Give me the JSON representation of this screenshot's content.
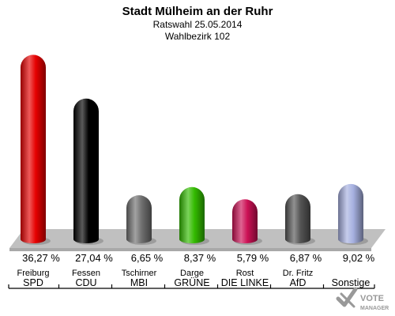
{
  "header": {
    "title": "Stadt Mülheim an der Ruhr",
    "subtitle": "Ratswahl 25.05.2014",
    "district": "Wahlbezirk 102"
  },
  "logo": {
    "text_top": "VOTE",
    "text_bottom": "MANAGER"
  },
  "chart_data": {
    "type": "bar",
    "title": "Stadt Mülheim an der Ruhr",
    "categories": [
      "SPD",
      "CDU",
      "MBI",
      "GRÜNE",
      "DIE LINKE",
      "AfD",
      "Sonstige"
    ],
    "candidates": [
      "Freiburg",
      "Fessen",
      "Tschirner",
      "Darge",
      "Rost",
      "Dr. Fritz",
      ""
    ],
    "values": [
      36.27,
      27.04,
      6.65,
      8.37,
      5.79,
      6.87,
      9.02
    ],
    "value_labels": [
      "36,27 %",
      "27,04 %",
      "6,65 %",
      "8,37 %",
      "5,79 %",
      "6,87 %",
      "9,02 %"
    ],
    "colors": [
      "#e60000",
      "#000000",
      "#707070",
      "#33bb00",
      "#cc1155",
      "#555555",
      "#a6b0e0"
    ],
    "ylim": [
      0,
      40
    ],
    "grid": false,
    "legend": "none"
  }
}
